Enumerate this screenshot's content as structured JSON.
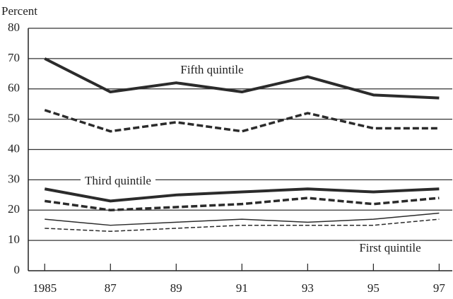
{
  "chart_data": {
    "type": "line",
    "ylabel": "Percent",
    "x": [
      1985,
      1987,
      1989,
      1991,
      1993,
      1995,
      1997
    ],
    "series": [
      {
        "name": "Fifth quintile",
        "color": "#2b2b2b",
        "line_style": "solid",
        "line_width": 4,
        "values": [
          70,
          59,
          62,
          59,
          64,
          58,
          57
        ]
      },
      {
        "color": "#2b2b2b",
        "line_style": "dashed",
        "line_width": 3.5,
        "values": [
          53,
          46,
          49,
          46,
          52,
          47,
          47
        ]
      },
      {
        "name": "Third quintile",
        "color": "#2b2b2b",
        "line_style": "solid",
        "line_width": 4,
        "values": [
          27,
          23,
          25,
          26,
          27,
          26,
          27
        ]
      },
      {
        "color": "#2b2b2b",
        "line_style": "dashed",
        "line_width": 3.5,
        "values": [
          23,
          20,
          21,
          22,
          24,
          22,
          24
        ]
      },
      {
        "name": "First quintile",
        "color": "#2b2b2b",
        "line_style": "solid",
        "line_width": 1.5,
        "values": [
          17,
          15,
          16,
          17,
          16,
          17,
          19
        ]
      },
      {
        "color": "#2b2b2b",
        "line_style": "dashed",
        "line_width": 1.5,
        "values": [
          14,
          13,
          14,
          15,
          15,
          15,
          17
        ]
      }
    ],
    "xlim": [
      1984.5,
      1997.4
    ],
    "xticks": [
      1985,
      {
        "value": 1987,
        "label": "87"
      },
      {
        "value": 1989,
        "label": "89"
      },
      {
        "value": 1991,
        "label": "91"
      },
      {
        "value": 1993,
        "label": "93"
      },
      {
        "value": 1995,
        "label": "95"
      },
      {
        "value": 1997,
        "label": "97"
      }
    ],
    "ylim": [
      0,
      80
    ],
    "yticks": [
      0,
      10,
      20,
      30,
      40,
      50,
      60,
      70,
      80
    ],
    "grid": true
  }
}
